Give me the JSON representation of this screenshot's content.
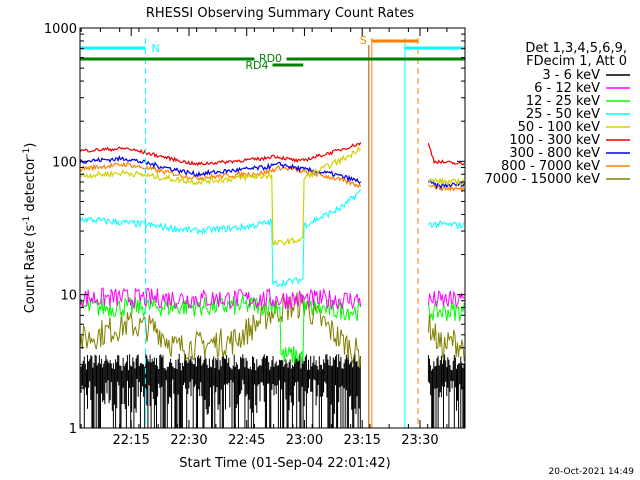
{
  "chart_data": {
    "type": "line",
    "title": "RHESSI Observing Summary Count Rates",
    "xlabel": "Start Time (01-Sep-04 22:01:42)",
    "ylabel": "Count Rate (s⁻¹ detector⁻¹)",
    "ylabel_main": "Count Rate (s",
    "ylabel_sup1": "-1",
    "ylabel_mid": " detector",
    "ylabel_sup2": "-1",
    "ylabel_end": ")",
    "yscale": "log",
    "ylim": [
      1,
      1000
    ],
    "y_ticks": [
      1,
      10,
      100,
      1000
    ],
    "y_tick_labels": [
      "1",
      "10",
      "100",
      "1000"
    ],
    "xlim_min": [
      0,
      100
    ],
    "x_ticks_min": [
      13.3,
      28.3,
      43.3,
      58.3,
      73.3,
      88.3
    ],
    "x_tick_labels": [
      "22:15",
      "22:30",
      "22:45",
      "23:00",
      "23:15",
      "23:30"
    ],
    "info_lines": [
      "Det 1,3,4,5,6,9,",
      "FDecim 1, Att 0"
    ],
    "series": [
      {
        "name": "3 - 6 keV",
        "color": "#000000"
      },
      {
        "name": "6 - 12 keV",
        "color": "#ff00ff"
      },
      {
        "name": "12 - 25 keV",
        "color": "#00ff00"
      },
      {
        "name": "25 - 50 keV",
        "color": "#00ffff"
      },
      {
        "name": "50 - 100 keV",
        "color": "#d2d200"
      },
      {
        "name": "100 - 300 keV",
        "color": "#ee0000"
      },
      {
        "name": "300 - 800 keV",
        "color": "#0000ee"
      },
      {
        "name": "800 - 7000 keV",
        "color": "#ff8000"
      },
      {
        "name": "7000 - 15000 keV",
        "color": "#808000"
      }
    ],
    "segments": [
      {
        "start": 0,
        "end": 73
      },
      {
        "start": 90.5,
        "end": 100
      }
    ],
    "curve_points": {
      "red": [
        [
          0,
          120
        ],
        [
          12,
          125
        ],
        [
          30,
          95
        ],
        [
          48,
          105
        ],
        [
          50,
          110
        ],
        [
          57,
          100
        ],
        [
          66,
          118
        ],
        [
          74,
          140
        ],
        [
          90.5,
          135
        ],
        [
          92,
          100
        ],
        [
          100,
          95
        ]
      ],
      "blue": [
        [
          0,
          100
        ],
        [
          12,
          105
        ],
        [
          30,
          80
        ],
        [
          48,
          90
        ],
        [
          52,
          95
        ],
        [
          57,
          88
        ],
        [
          66,
          80
        ],
        [
          73,
          70
        ],
        [
          90.5,
          70
        ],
        [
          93,
          65
        ],
        [
          100,
          68
        ]
      ],
      "orange": [
        [
          0,
          88
        ],
        [
          12,
          95
        ],
        [
          30,
          75
        ],
        [
          48,
          82
        ],
        [
          52,
          90
        ],
        [
          57,
          85
        ],
        [
          66,
          75
        ],
        [
          73,
          65
        ],
        [
          90.5,
          68
        ],
        [
          93,
          63
        ],
        [
          100,
          62
        ]
      ],
      "yellow": [
        [
          0,
          78
        ],
        [
          12,
          82
        ],
        [
          30,
          70
        ],
        [
          48,
          78
        ],
        [
          50,
          78
        ],
        [
          50,
          24
        ],
        [
          58,
          26
        ],
        [
          58,
          75
        ],
        [
          70,
          110
        ],
        [
          73,
          130
        ],
        [
          90.5,
          72
        ],
        [
          95,
          70
        ],
        [
          100,
          70
        ]
      ],
      "cyan": [
        [
          0,
          37
        ],
        [
          15,
          34
        ],
        [
          30,
          30
        ],
        [
          42,
          32
        ],
        [
          50,
          35
        ],
        [
          50,
          12
        ],
        [
          58,
          13
        ],
        [
          58,
          33
        ],
        [
          68,
          45
        ],
        [
          73,
          60
        ],
        [
          90.5,
          34
        ],
        [
          100,
          33
        ]
      ],
      "magenta": [
        [
          0,
          9.5
        ],
        [
          100,
          9
        ]
      ],
      "green": [
        [
          0,
          8
        ],
        [
          40,
          8.2
        ],
        [
          52,
          8.5
        ],
        [
          52,
          3.5
        ],
        [
          58,
          3.5
        ],
        [
          58,
          8
        ],
        [
          73,
          7.5
        ],
        [
          90.5,
          7.5
        ],
        [
          100,
          7.5
        ]
      ],
      "olive": [
        [
          0,
          4.5
        ],
        [
          12,
          6
        ],
        [
          20,
          5.5
        ],
        [
          25,
          4
        ],
        [
          40,
          4.5
        ],
        [
          50,
          7.5
        ],
        [
          58,
          8.5
        ],
        [
          68,
          4.5
        ],
        [
          73,
          3.5
        ],
        [
          90.5,
          6
        ],
        [
          94,
          4
        ],
        [
          97,
          4.5
        ],
        [
          100,
          4
        ]
      ],
      "black_top": [
        [
          0,
          3
        ],
        [
          100,
          3
        ]
      ],
      "black_base": [
        [
          0,
          1.8
        ],
        [
          100,
          1.8
        ]
      ]
    },
    "annotations": {
      "night_label": "N",
      "saa_label": "S",
      "rd0_label": "RD0",
      "rd4_label": "RD4"
    },
    "night_intervals": [
      [
        0,
        17
      ],
      [
        84.4,
        100
      ]
    ],
    "saa_interval": [
      75.8,
      87.8
    ],
    "rd0_interval": [
      0,
      100
    ],
    "rd4_interval": [
      50,
      58
    ],
    "cyan_vlines": [
      17,
      84.4,
      100
    ],
    "orange_vlines": [
      75.8,
      87.8
    ],
    "timestamp": "20-Oct-2021 14:49"
  }
}
